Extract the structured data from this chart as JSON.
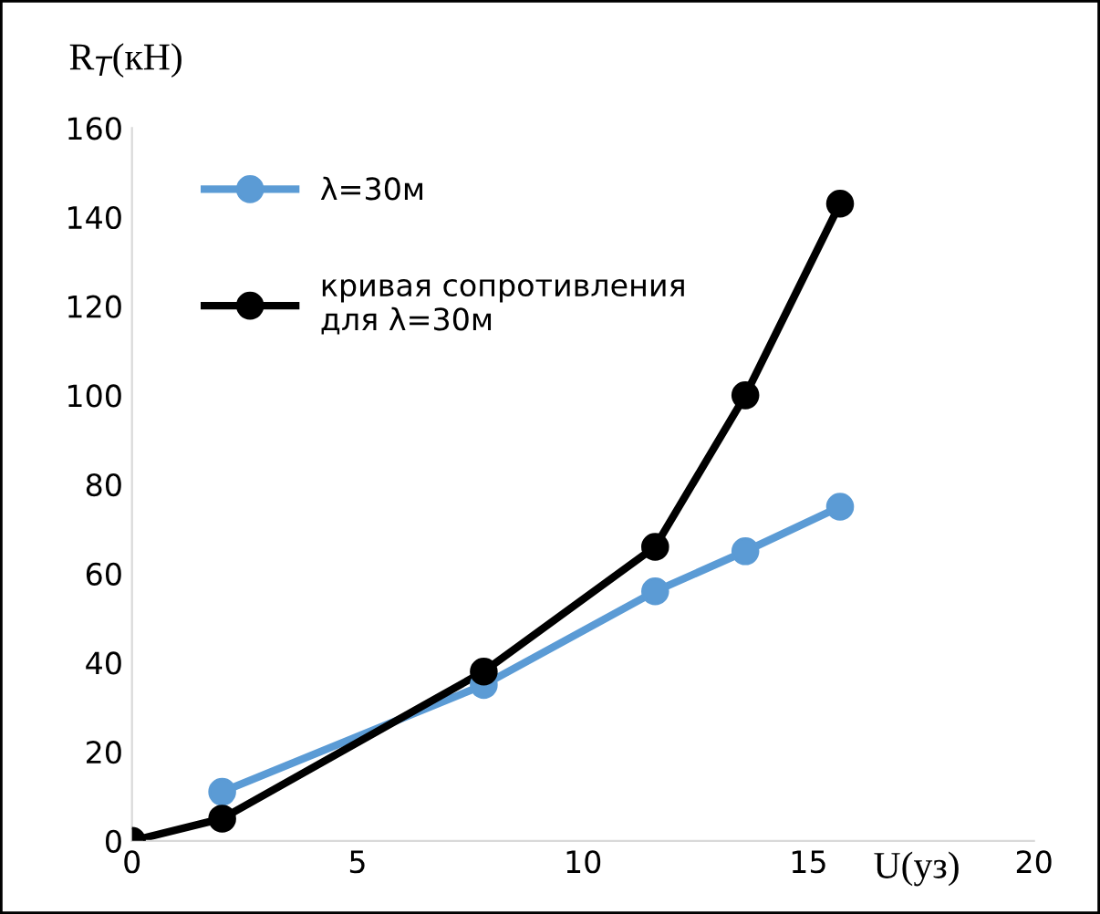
{
  "chart_data": {
    "type": "line",
    "ylabel": "R$_{T}$(кН)",
    "xlabel": "U(уз)",
    "xlim": [
      0,
      20
    ],
    "xticks": [
      0,
      5,
      10,
      15,
      20
    ],
    "ylim": [
      0,
      160
    ],
    "yticks": [
      0,
      20,
      40,
      60,
      80,
      100,
      120,
      140,
      160
    ],
    "grid": false,
    "legend": "top left",
    "marker": "circle",
    "line_style": "solid",
    "series": [
      {
        "name": "λ=30м",
        "color": "#5b9bd5",
        "x": [
          2,
          7.8,
          11.6,
          13.6,
          15.7
        ],
        "values": [
          11,
          35,
          56,
          65,
          75
        ]
      },
      {
        "name": "кривая сопротивления для λ=30м",
        "color": "#000000",
        "x": [
          0,
          2,
          7.8,
          11.6,
          13.6,
          15.7
        ],
        "values": [
          0,
          5,
          38,
          66,
          100,
          143
        ]
      }
    ]
  }
}
